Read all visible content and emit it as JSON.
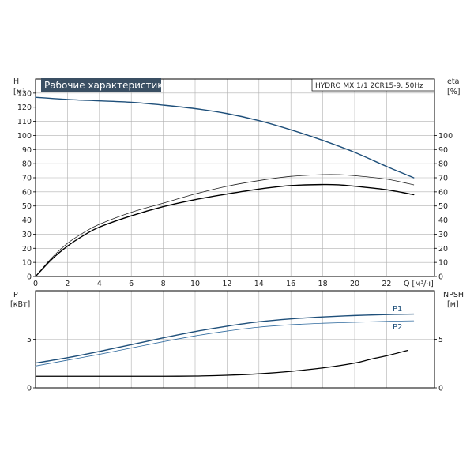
{
  "header": {
    "title": "Рабочие характеристики",
    "model": "HYDRO MX 1/1 2CR15-9, 50Hz"
  },
  "colors": {
    "head": "#1e4f7a",
    "power": "#1e4f7a",
    "eta": "#000000",
    "npsh": "#000000",
    "title_bg": "#3a4f63",
    "grid": "#b0b0b0"
  },
  "chart_data": [
    {
      "type": "line",
      "panel": "upper",
      "xlabel": "Q [м³/ч]",
      "x_unit": "Q [м³/ч]",
      "xlim": [
        0,
        25
      ],
      "x_ticks": [
        0,
        2,
        4,
        6,
        8,
        10,
        12,
        14,
        16,
        18,
        20,
        22
      ],
      "ylabel_left": "H",
      "ylabel_left_unit": "[м]",
      "ylim_left": [
        0,
        140
      ],
      "y_ticks_left": [
        0,
        10,
        20,
        30,
        40,
        50,
        60,
        70,
        80,
        90,
        100,
        110,
        120,
        130
      ],
      "ylabel_right": "eta",
      "ylabel_right_unit": "[%]",
      "ylim_right": [
        0,
        140
      ],
      "y_ticks_right": [
        0,
        10,
        20,
        30,
        40,
        50,
        60,
        70,
        80,
        90,
        100
      ],
      "grid": true,
      "series": [
        {
          "axis": "left",
          "color": "#1e4f7a",
          "width": 1.4,
          "x": [
            0,
            2,
            4,
            6,
            8,
            10,
            12,
            14,
            16,
            18,
            20,
            22,
            23.7
          ],
          "y": [
            127,
            125.5,
            124.5,
            123.5,
            121.5,
            119,
            115.5,
            110.5,
            104,
            96.5,
            88,
            78,
            70
          ]
        },
        {
          "axis": "right",
          "color": "#222222",
          "width": 0.8,
          "x": [
            0,
            1,
            2,
            3,
            4,
            6,
            8,
            10,
            12,
            14,
            16,
            18,
            19,
            20,
            22,
            23.7
          ],
          "y": [
            0,
            13,
            23.5,
            31,
            37,
            45.5,
            52,
            58.5,
            64,
            68,
            71,
            72.2,
            72.2,
            71.5,
            69,
            65
          ]
        },
        {
          "axis": "right",
          "color": "#000000",
          "width": 1.4,
          "x": [
            0,
            1,
            2,
            3,
            4,
            6,
            8,
            10,
            12,
            14,
            16,
            18,
            19,
            20,
            22,
            23.7
          ],
          "y": [
            0,
            12,
            21.5,
            29,
            35,
            43,
            49.5,
            54.5,
            58.5,
            62,
            64.5,
            65.2,
            65,
            64,
            61.5,
            58
          ]
        }
      ]
    },
    {
      "type": "line",
      "panel": "lower",
      "xlim": [
        0,
        25
      ],
      "ylabel_left": "P",
      "ylabel_left_unit": "[кВт]",
      "ylim_left": [
        0,
        10
      ],
      "y_ticks_left": [
        0,
        5
      ],
      "ylabel_right": "NPSH",
      "ylabel_right_unit": "[м]",
      "ylim_right": [
        0,
        10
      ],
      "y_ticks_right": [
        0,
        5
      ],
      "grid": true,
      "series": [
        {
          "name": "P1",
          "axis": "left",
          "color": "#1e4f7a",
          "width": 1.4,
          "x": [
            0,
            2,
            4,
            6,
            8,
            10,
            12,
            14,
            16,
            18,
            20,
            22,
            23.7
          ],
          "y": [
            2.55,
            3.1,
            3.75,
            4.45,
            5.15,
            5.8,
            6.35,
            6.8,
            7.1,
            7.3,
            7.45,
            7.55,
            7.6
          ]
        },
        {
          "name": "P2",
          "axis": "left",
          "color": "#2f6a9e",
          "width": 0.8,
          "x": [
            0,
            2,
            4,
            6,
            8,
            10,
            12,
            14,
            16,
            18,
            20,
            22,
            23.7
          ],
          "y": [
            2.25,
            2.85,
            3.45,
            4.1,
            4.75,
            5.35,
            5.85,
            6.25,
            6.5,
            6.65,
            6.75,
            6.85,
            6.9
          ]
        },
        {
          "axis": "right",
          "color": "#000000",
          "width": 1.3,
          "x": [
            0,
            2,
            4,
            6,
            8,
            10,
            12,
            14,
            16,
            18,
            20,
            21,
            22,
            23.3
          ],
          "y": [
            1.2,
            1.2,
            1.2,
            1.2,
            1.2,
            1.22,
            1.3,
            1.45,
            1.7,
            2.05,
            2.55,
            2.95,
            3.3,
            3.85
          ]
        }
      ]
    }
  ]
}
